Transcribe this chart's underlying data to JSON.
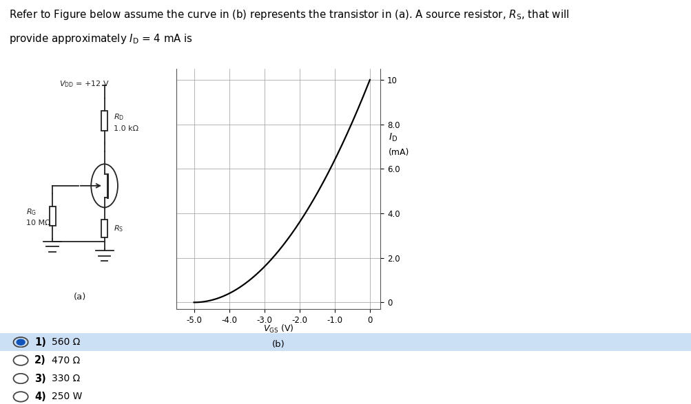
{
  "background_color": "#ffffff",
  "panel1_bg": "#ddeeff",
  "answer_options": [
    {
      "number": "1",
      "text": "560 Ω",
      "selected": true
    },
    {
      "number": "2",
      "text": "470 Ω",
      "selected": false
    },
    {
      "number": "3",
      "text": "330 Ω",
      "selected": false
    },
    {
      "number": "4",
      "text": "250 W",
      "selected": false
    }
  ],
  "graph": {
    "xlim": [
      -5.5,
      0.3
    ],
    "ylim": [
      -0.3,
      10.5
    ],
    "xticks": [
      -5.0,
      -4.0,
      -3.0,
      -2.0,
      -1.0,
      0
    ],
    "yticks": [
      0,
      2.0,
      4.0,
      6.0,
      8.0,
      10
    ],
    "xtick_labels": [
      "-5.0",
      "-4.0",
      "-3.0",
      "-2.0",
      "-1.0",
      "0"
    ],
    "ytick_labels": [
      "0",
      "2.0",
      "4.0",
      "6.0",
      "8.0",
      "10"
    ],
    "curve_color": "#000000",
    "vp": -5.0,
    "idss": 10.0
  }
}
